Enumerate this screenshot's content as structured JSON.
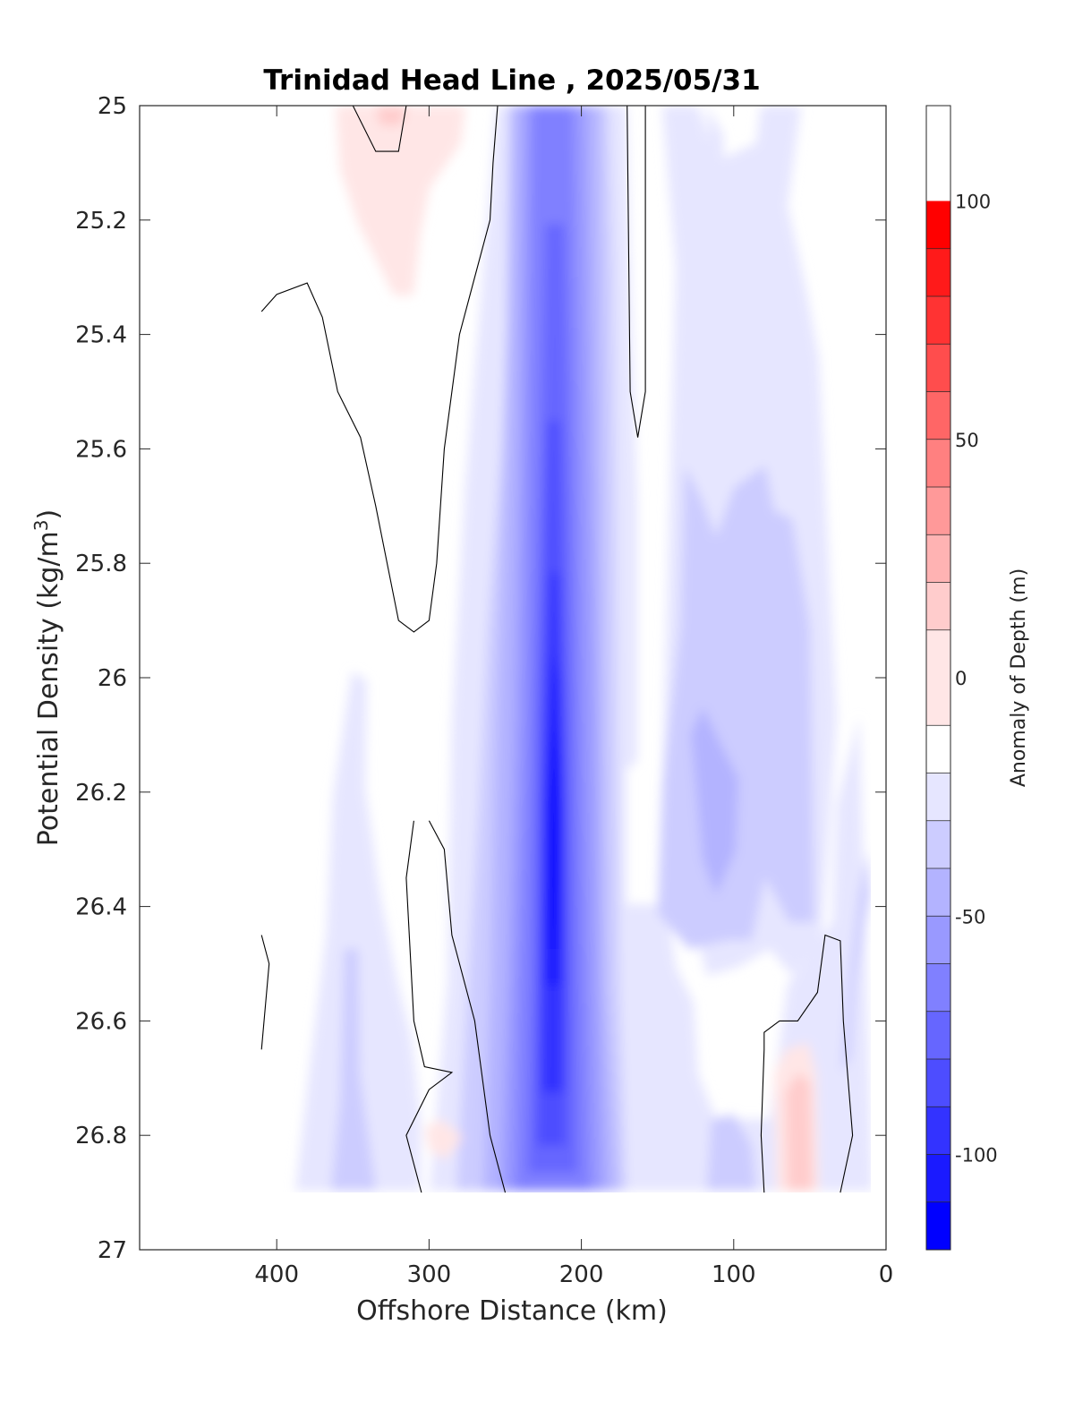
{
  "chart_data": {
    "type": "heatmap",
    "title": "Trinidad Head Line , 2025/05/31",
    "xlabel": "Offshore Distance (km)",
    "ylabel_main": "Potential Density (kg/m",
    "ylabel_sup": "3",
    "ylabel_end": ")",
    "colorbar_label": "Anomaly of Depth (m)",
    "x_axis": {
      "range": [
        490,
        0
      ],
      "reversed": true,
      "ticks": [
        400,
        300,
        200,
        100,
        0
      ],
      "tick_labels": [
        "400",
        "300",
        "200",
        "100",
        "0"
      ]
    },
    "y_axis": {
      "range": [
        25,
        27
      ],
      "reversed": true,
      "ticks": [
        25,
        25.2,
        25.4,
        25.6,
        25.8,
        26,
        26.2,
        26.4,
        26.6,
        26.8,
        27
      ],
      "tick_labels": [
        "25",
        "25.2",
        "25.4",
        "25.6",
        "25.8",
        "26",
        "26.2",
        "26.4",
        "26.6",
        "26.8",
        "27"
      ]
    },
    "colorbar": {
      "range": [
        -120,
        120
      ],
      "levels": [
        -120,
        -110,
        -100,
        -90,
        -80,
        -70,
        -60,
        -50,
        -40,
        -30,
        -20,
        -10,
        10,
        20,
        30,
        40,
        50,
        60,
        70,
        80,
        90,
        100,
        110,
        120
      ],
      "colors": [
        "#0000ff",
        "#1a1aff",
        "#3333ff",
        "#4d4dff",
        "#6666ff",
        "#8080ff",
        "#9999ff",
        "#b3b3ff",
        "#ccccff",
        "#e6e6ff",
        "#ffffff",
        "#ffe6e6",
        "#ffcccc",
        "#ffb3b3",
        "#ff9999",
        "#ff8080",
        "#ff6666",
        "#ff4d4d",
        "#ff3333",
        "#ff1a1a",
        "#ff0000"
      ],
      "ticks": [
        100,
        50,
        0,
        -50,
        -100
      ],
      "tick_labels": [
        "100",
        "50",
        "0",
        "-50",
        "-100"
      ]
    },
    "data_extent": {
      "x": [
        410,
        10
      ],
      "y": [
        25,
        26.9
      ]
    },
    "contour_zero_lines": [
      [
        [
          315,
          25
        ],
        [
          320,
          25.08
        ],
        [
          335,
          25.08
        ],
        [
          350,
          25
        ]
      ],
      [
        [
          410,
          25.36
        ],
        [
          400,
          25.33
        ],
        [
          380,
          25.31
        ],
        [
          370,
          25.37
        ],
        [
          360,
          25.5
        ],
        [
          345,
          25.58
        ],
        [
          335,
          25.7
        ],
        [
          320,
          25.9
        ],
        [
          310,
          25.92
        ],
        [
          300,
          25.9
        ],
        [
          295,
          25.8
        ],
        [
          290,
          25.6
        ],
        [
          285,
          25.5
        ],
        [
          280,
          25.4
        ],
        [
          270,
          25.3
        ],
        [
          260,
          25.2
        ],
        [
          258,
          25.1
        ],
        [
          255,
          25
        ]
      ],
      [
        [
          170,
          25
        ],
        [
          168,
          25.5
        ],
        [
          163,
          25.58
        ],
        [
          158,
          25.5
        ],
        [
          158,
          25
        ]
      ],
      [
        [
          300,
          26.25
        ],
        [
          290,
          26.3
        ],
        [
          285,
          26.45
        ],
        [
          270,
          26.6
        ],
        [
          260,
          26.8
        ],
        [
          250,
          26.9
        ]
      ],
      [
        [
          310,
          26.25
        ],
        [
          315,
          26.35
        ],
        [
          312,
          26.5
        ],
        [
          310,
          26.6
        ],
        [
          303,
          26.68
        ],
        [
          285,
          26.69
        ],
        [
          300,
          26.72
        ],
        [
          315,
          26.8
        ],
        [
          305,
          26.9
        ]
      ],
      [
        [
          410,
          26.45
        ],
        [
          405,
          26.5
        ],
        [
          410,
          26.65
        ]
      ],
      [
        [
          80,
          26.9
        ],
        [
          82,
          26.8
        ],
        [
          80,
          26.65
        ],
        [
          80,
          26.62
        ],
        [
          70,
          26.6
        ],
        [
          58,
          26.6
        ],
        [
          45,
          26.55
        ],
        [
          40,
          26.45
        ],
        [
          30,
          26.46
        ],
        [
          28,
          26.6
        ],
        [
          25,
          26.7
        ],
        [
          22,
          26.8
        ],
        [
          30,
          26.9
        ]
      ]
    ]
  }
}
